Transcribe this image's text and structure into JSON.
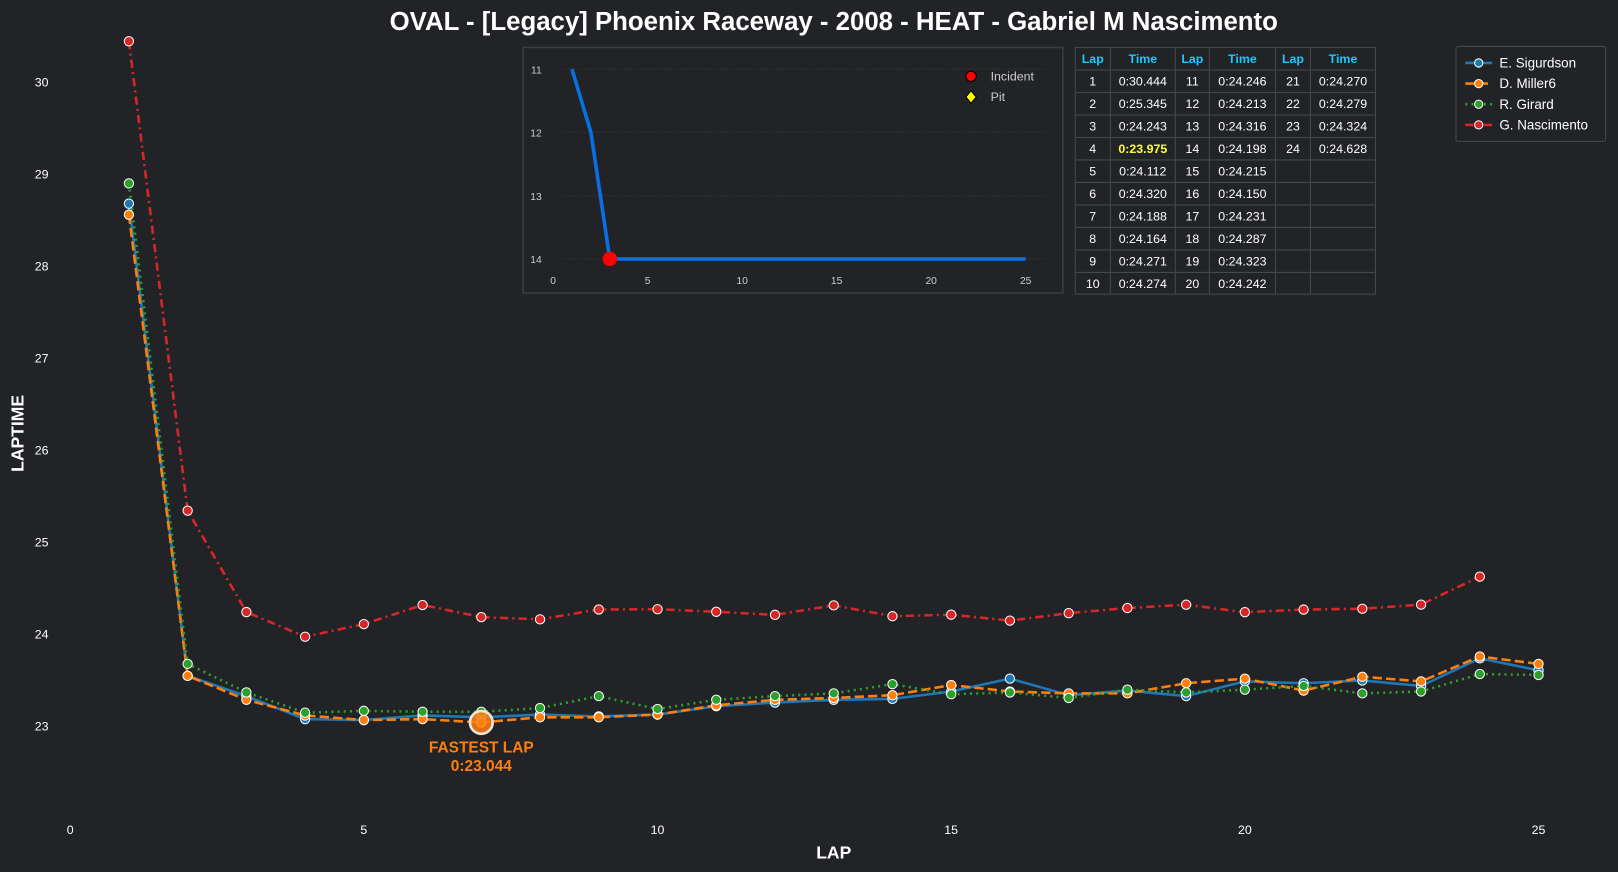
{
  "chart_data": {
    "type": "line",
    "title": "OVAL - [Legacy] Phoenix Raceway - 2008 - HEAT - Gabriel M Nascimento",
    "xlabel": "LAP",
    "ylabel": "LAPTIME",
    "xlim": [
      0,
      25.2
    ],
    "ylim": [
      22.0,
      30.45
    ],
    "xticks": [
      0,
      5,
      10,
      15,
      20,
      25
    ],
    "yticks": [
      23,
      24,
      25,
      26,
      27,
      28,
      29,
      30
    ],
    "grid": false,
    "legend_position": "top-right",
    "colors": {
      "background": "#212327",
      "text": "#ffffff",
      "header": "#1ec8ff",
      "highlight": "#ffff33",
      "fastest": "#ff7f0e"
    },
    "series": [
      {
        "name": "E. Sigurdson",
        "color": "#1f77b4",
        "style": "solid",
        "x": [
          1,
          2,
          3,
          4,
          5,
          6,
          7,
          8,
          9,
          10,
          11,
          12,
          13,
          14,
          15,
          16,
          17,
          18,
          19,
          20,
          21,
          22,
          23,
          24,
          25
        ],
        "values": [
          28.68,
          23.55,
          23.33,
          23.08,
          23.07,
          23.12,
          23.1,
          23.13,
          23.11,
          23.13,
          23.22,
          23.26,
          23.29,
          23.3,
          23.38,
          23.52,
          23.34,
          23.39,
          23.33,
          23.49,
          23.47,
          23.5,
          23.44,
          23.74,
          23.61
        ]
      },
      {
        "name": "D. Miller6",
        "color": "#ff7f0e",
        "style": "dashed",
        "x": [
          1,
          2,
          3,
          4,
          5,
          6,
          7,
          8,
          9,
          10,
          11,
          12,
          13,
          14,
          15,
          16,
          17,
          18,
          19,
          20,
          21,
          22,
          23,
          24,
          25
        ],
        "values": [
          28.56,
          23.55,
          23.29,
          23.12,
          23.07,
          23.08,
          23.044,
          23.1,
          23.1,
          23.13,
          23.23,
          23.29,
          23.31,
          23.34,
          23.45,
          23.38,
          23.36,
          23.36,
          23.47,
          23.52,
          23.39,
          23.54,
          23.49,
          23.76,
          23.68
        ]
      },
      {
        "name": "R. Girard",
        "color": "#2ca02c",
        "style": "dotted",
        "x": [
          1,
          2,
          3,
          4,
          5,
          6,
          7,
          8,
          9,
          10,
          11,
          12,
          13,
          14,
          15,
          16,
          17,
          18,
          19,
          20,
          21,
          22,
          23,
          24,
          25
        ],
        "values": [
          28.9,
          23.68,
          23.37,
          23.15,
          23.17,
          23.16,
          23.16,
          23.2,
          23.33,
          23.19,
          23.29,
          23.33,
          23.36,
          23.46,
          23.35,
          23.37,
          23.31,
          23.4,
          23.37,
          23.4,
          23.44,
          23.36,
          23.38,
          23.57,
          23.56
        ]
      },
      {
        "name": "G. Nascimento",
        "color": "#d62728",
        "style": "dashdot",
        "x": [
          1,
          2,
          3,
          4,
          5,
          6,
          7,
          8,
          9,
          10,
          11,
          12,
          13,
          14,
          15,
          16,
          17,
          18,
          19,
          20,
          21,
          22,
          23,
          24
        ],
        "values": [
          30.444,
          25.345,
          24.243,
          23.975,
          24.112,
          24.32,
          24.188,
          24.164,
          24.271,
          24.274,
          24.246,
          24.213,
          24.316,
          24.198,
          24.215,
          24.15,
          24.231,
          24.287,
          24.323,
          24.242,
          24.27,
          24.279,
          24.324,
          24.628
        ]
      }
    ],
    "annotation": {
      "label": "FASTEST LAP",
      "value": "0:23.044",
      "lap": 7,
      "laptime": 23.044
    },
    "inset": {
      "type": "line",
      "xticks": [
        0,
        5,
        10,
        15,
        20,
        25
      ],
      "yticks": [
        11,
        12,
        13,
        14
      ],
      "xlim": [
        0,
        25
      ],
      "ylim": [
        11,
        14
      ],
      "color": "#0a6fe0",
      "x": [
        1,
        2,
        3,
        4,
        5,
        6,
        7,
        8,
        9,
        10,
        11,
        12,
        13,
        14,
        15,
        16,
        17,
        18,
        19,
        20,
        21,
        22,
        23,
        24,
        25
      ],
      "values": [
        11,
        12,
        14,
        14,
        14,
        14,
        14,
        14,
        14,
        14,
        14,
        14,
        14,
        14,
        14,
        14,
        14,
        14,
        14,
        14,
        14,
        14,
        14,
        14,
        14
      ],
      "incidents": [
        {
          "x": 3,
          "y": 14
        }
      ],
      "pits": [],
      "legend": [
        {
          "label": "Incident",
          "color": "#ff0000",
          "marker": "circle"
        },
        {
          "label": "Pit",
          "color": "#ffff00",
          "marker": "diamond"
        }
      ]
    },
    "table": {
      "headers": [
        "Lap",
        "Time",
        "Lap",
        "Time",
        "Lap",
        "Time"
      ],
      "fastest_lap": "4",
      "laps": [
        [
          "1",
          "0:30.444"
        ],
        [
          "2",
          "0:25.345"
        ],
        [
          "3",
          "0:24.243"
        ],
        [
          "4",
          "0:23.975"
        ],
        [
          "5",
          "0:24.112"
        ],
        [
          "6",
          "0:24.320"
        ],
        [
          "7",
          "0:24.188"
        ],
        [
          "8",
          "0:24.164"
        ],
        [
          "9",
          "0:24.271"
        ],
        [
          "10",
          "0:24.274"
        ],
        [
          "11",
          "0:24.246"
        ],
        [
          "12",
          "0:24.213"
        ],
        [
          "13",
          "0:24.316"
        ],
        [
          "14",
          "0:24.198"
        ],
        [
          "15",
          "0:24.215"
        ],
        [
          "16",
          "0:24.150"
        ],
        [
          "17",
          "0:24.231"
        ],
        [
          "18",
          "0:24.287"
        ],
        [
          "19",
          "0:24.323"
        ],
        [
          "20",
          "0:24.242"
        ],
        [
          "21",
          "0:24.270"
        ],
        [
          "22",
          "0:24.279"
        ],
        [
          "23",
          "0:24.324"
        ],
        [
          "24",
          "0:24.628"
        ]
      ]
    }
  }
}
